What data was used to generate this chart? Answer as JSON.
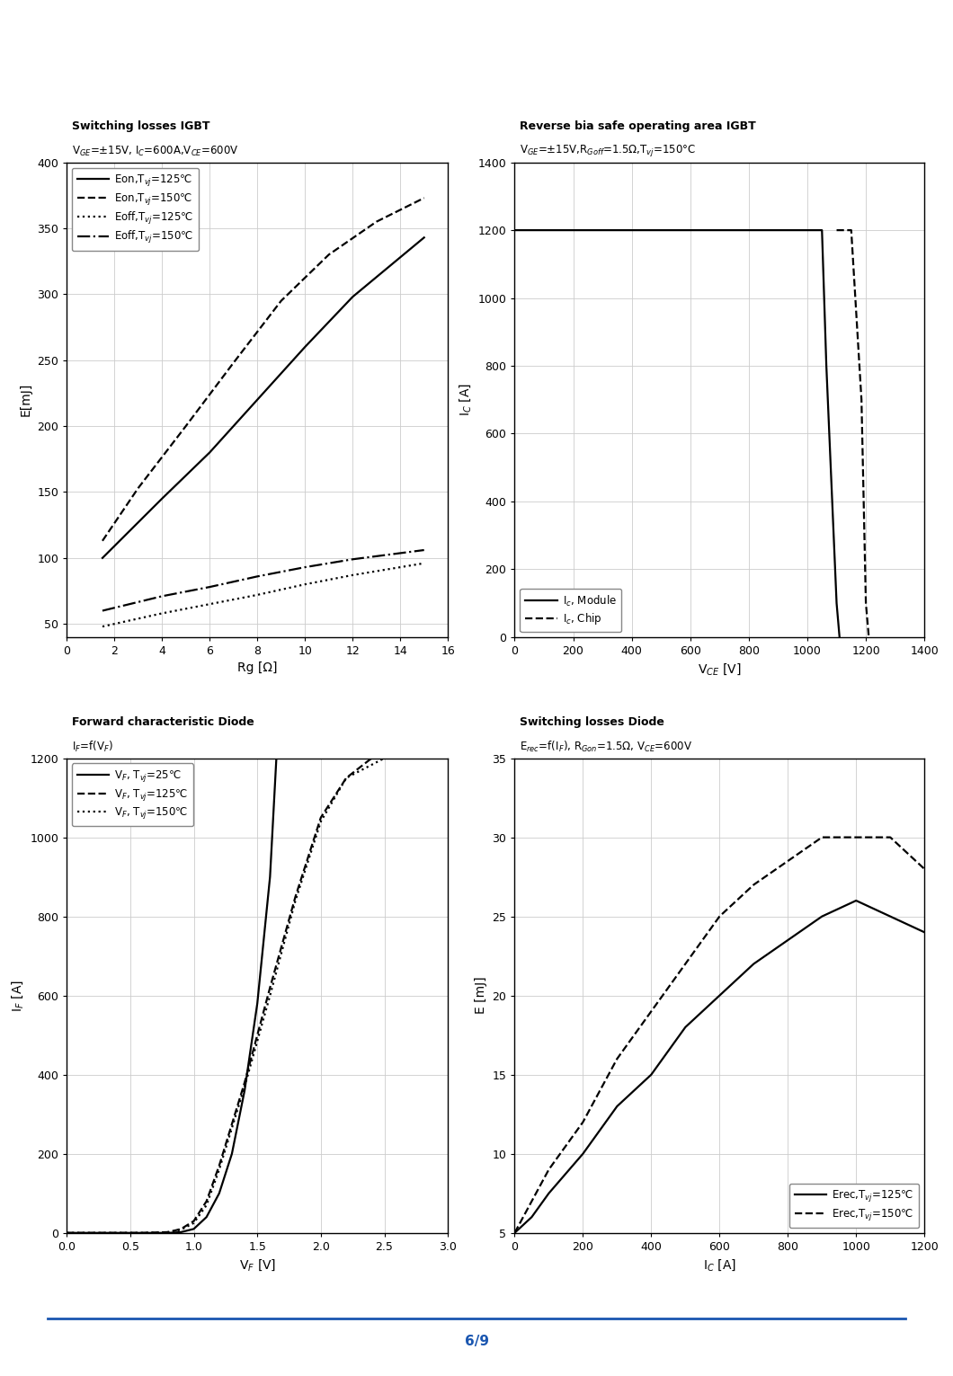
{
  "fig_width": 10.6,
  "fig_height": 15.31,
  "background_color": "#ffffff",
  "page_number": "6/9",
  "plot1": {
    "title_line1": "Switching losses IGBT",
    "title_line2": "V$_{GE}$=±15V, I$_C$=600A,V$_{CE}$=600V",
    "xlabel": "Rg [Ω]",
    "ylabel": "E[mJ]",
    "xlim": [
      0,
      16
    ],
    "ylim": [
      40,
      400
    ],
    "xticks": [
      0,
      2,
      4,
      6,
      8,
      10,
      12,
      14,
      16
    ],
    "yticks": [
      50,
      100,
      150,
      200,
      250,
      300,
      350,
      400
    ],
    "legend_loc": "upper left",
    "series": [
      {
        "label": "Eon,T$_{vj}$=125℃",
        "style": "solid",
        "x": [
          1.5,
          4.0,
          6.0,
          8.0,
          10.0,
          12.0,
          15.0
        ],
        "y": [
          100,
          145,
          180,
          220,
          260,
          298,
          343
        ]
      },
      {
        "label": "Eon,T$_{vj}$=150℃",
        "style": "dashed",
        "x": [
          1.5,
          3.0,
          5.0,
          7.0,
          9.0,
          11.0,
          13.0,
          15.0
        ],
        "y": [
          113,
          153,
          200,
          248,
          295,
          330,
          355,
          373
        ]
      },
      {
        "label": "Eoff,T$_{vj}$=125℃",
        "style": "dotted",
        "x": [
          1.5,
          4.0,
          6.0,
          8.0,
          10.0,
          12.0,
          15.0
        ],
        "y": [
          48,
          58,
          65,
          72,
          80,
          87,
          96
        ]
      },
      {
        "label": "Eoff,T$_{vj}$=150℃",
        "style": "dashdot",
        "x": [
          1.5,
          4.0,
          6.0,
          8.0,
          10.0,
          12.0,
          15.0
        ],
        "y": [
          60,
          71,
          78,
          86,
          93,
          99,
          106
        ]
      }
    ]
  },
  "plot2": {
    "title_line1": "Reverse bia safe operating area IGBT",
    "title_line2": "V$_{GE}$=±15V,R$_{Goff}$=1.5Ω,T$_{vj}$=150°C",
    "xlabel": "V$_{CE}$ [V]",
    "ylabel": "I$_C$ [A]",
    "xlim": [
      0,
      1400
    ],
    "ylim": [
      0,
      1400
    ],
    "xticks": [
      0,
      200,
      400,
      600,
      800,
      1000,
      1200,
      1400
    ],
    "yticks": [
      0,
      200,
      400,
      600,
      800,
      1000,
      1200,
      1400
    ],
    "legend_loc": "lower left",
    "series": [
      {
        "label": "I$_{c}$, Module",
        "style": "solid",
        "x": [
          0,
          1050,
          1065,
          1100,
          1110
        ],
        "y": [
          1200,
          1200,
          800,
          100,
          0
        ]
      },
      {
        "label": "I$_{c}$, Chip",
        "style": "dashed",
        "x": [
          1100,
          1150,
          1185,
          1200,
          1210
        ],
        "y": [
          1200,
          1200,
          700,
          100,
          0
        ]
      }
    ]
  },
  "plot3": {
    "title_line1": "Forward characteristic Diode",
    "title_line2": "I$_F$=f(V$_F$)",
    "xlabel": "V$_F$ [V]",
    "ylabel": "I$_F$ [A]",
    "xlim": [
      0.0,
      3.0
    ],
    "ylim": [
      0,
      1200
    ],
    "xticks": [
      0.0,
      0.5,
      1.0,
      1.5,
      2.0,
      2.5,
      3.0
    ],
    "yticks": [
      0,
      200,
      400,
      600,
      800,
      1000,
      1200
    ],
    "legend_loc": "upper left",
    "series": [
      {
        "label": "V$_F$, T$_{vj}$=25℃",
        "style": "solid",
        "x": [
          0.0,
          0.8,
          0.9,
          1.0,
          1.1,
          1.2,
          1.3,
          1.4,
          1.5,
          1.6,
          1.65
        ],
        "y": [
          0,
          0,
          2,
          10,
          40,
          100,
          200,
          360,
          580,
          900,
          1200
        ]
      },
      {
        "label": "V$_F$, T$_{vj}$=125℃",
        "style": "dashed",
        "x": [
          0.0,
          0.6,
          0.8,
          0.9,
          1.0,
          1.1,
          1.2,
          1.4,
          1.6,
          1.8,
          2.0,
          2.2,
          2.4
        ],
        "y": [
          0,
          0,
          2,
          10,
          30,
          80,
          170,
          380,
          620,
          850,
          1050,
          1150,
          1200
        ]
      },
      {
        "label": "V$_F$, T$_{vj}$=150℃",
        "style": "dotted",
        "x": [
          0.0,
          0.6,
          0.8,
          0.9,
          1.0,
          1.1,
          1.2,
          1.4,
          1.6,
          1.8,
          2.0,
          2.2,
          2.5
        ],
        "y": [
          0,
          0,
          2,
          8,
          25,
          70,
          160,
          370,
          600,
          840,
          1040,
          1150,
          1200
        ]
      }
    ]
  },
  "plot4": {
    "title_line1": "Switching losses Diode",
    "title_line2": "E$_{rec}$=f(I$_F$), R$_{Gon}$=1.5Ω, V$_{CE}$=600V",
    "xlabel": "I$_C$ [A]",
    "ylabel": "E [mJ]",
    "xlim": [
      0,
      1200
    ],
    "ylim": [
      5,
      35
    ],
    "xticks": [
      0,
      200,
      400,
      600,
      800,
      1000,
      1200
    ],
    "yticks": [
      5,
      10,
      15,
      20,
      25,
      30,
      35
    ],
    "legend_loc": "lower right",
    "series": [
      {
        "label": "Erec,T$_{vj}$=125℃",
        "style": "solid",
        "x": [
          0,
          50,
          100,
          200,
          300,
          400,
          500,
          600,
          700,
          800,
          900,
          1000,
          1100,
          1200
        ],
        "y": [
          5,
          6,
          7.5,
          10,
          13,
          15,
          18,
          20,
          22,
          23.5,
          25,
          26,
          25,
          24
        ]
      },
      {
        "label": "Erec,T$_{vj}$=150℃",
        "style": "dashed",
        "x": [
          0,
          50,
          100,
          200,
          300,
          400,
          500,
          600,
          700,
          800,
          900,
          1000,
          1100,
          1200
        ],
        "y": [
          5,
          7,
          9,
          12,
          16,
          19,
          22,
          25,
          27,
          28.5,
          30,
          30,
          30,
          28
        ]
      }
    ]
  }
}
